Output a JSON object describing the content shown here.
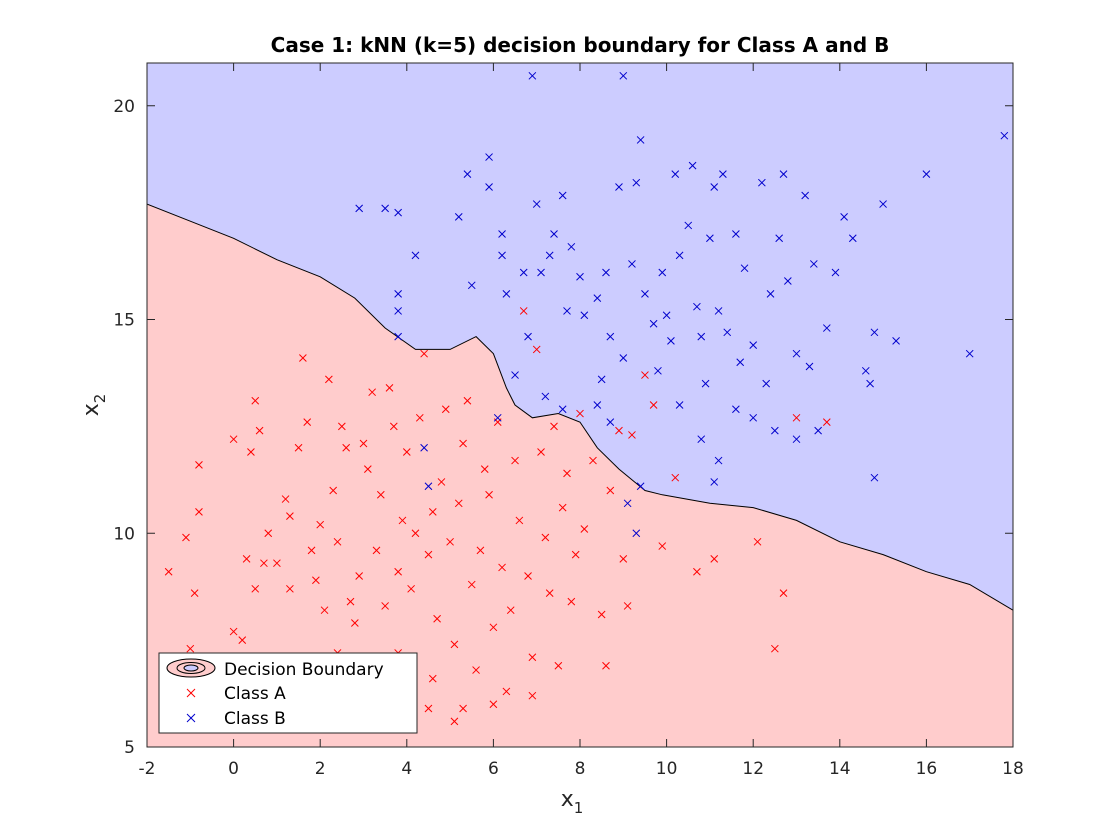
{
  "chart_data": {
    "type": "scatter",
    "title": "Case 1: kNN (k=5) decision boundary for Class A and B",
    "xlabel": {
      "base": "x",
      "sub": "1"
    },
    "ylabel": {
      "base": "x",
      "sub": "2"
    },
    "xlim": [
      -2,
      18
    ],
    "ylim": [
      5,
      21
    ],
    "xticks": [
      -2,
      0,
      2,
      4,
      6,
      8,
      10,
      12,
      14,
      16,
      18
    ],
    "yticks": [
      5,
      10,
      15,
      20
    ],
    "grid": false,
    "legend": {
      "position": "bottom-left",
      "entries": [
        "Decision Boundary",
        "Class A",
        "Class B"
      ]
    },
    "colors": {
      "class_a_region": "#ffcccc",
      "class_b_region": "#ccccff",
      "class_a_marker": "#ff0000",
      "class_b_marker": "#0000cc",
      "boundary": "#000000"
    },
    "decision_boundary": [
      [
        -2,
        17.7
      ],
      [
        -1,
        17.3
      ],
      [
        0,
        16.9
      ],
      [
        1,
        16.4
      ],
      [
        2,
        16.0
      ],
      [
        2.8,
        15.5
      ],
      [
        3.5,
        14.8
      ],
      [
        4.2,
        14.3
      ],
      [
        5.0,
        14.3
      ],
      [
        5.6,
        14.6
      ],
      [
        6.0,
        14.2
      ],
      [
        6.3,
        13.4
      ],
      [
        6.5,
        13.0
      ],
      [
        6.9,
        12.7
      ],
      [
        7.5,
        12.8
      ],
      [
        8.0,
        12.6
      ],
      [
        8.4,
        12.0
      ],
      [
        8.9,
        11.5
      ],
      [
        9.5,
        11.0
      ],
      [
        9.9,
        10.9
      ],
      [
        11.0,
        10.7
      ],
      [
        12.0,
        10.6
      ],
      [
        13.0,
        10.3
      ],
      [
        14.0,
        9.8
      ],
      [
        15.0,
        9.5
      ],
      [
        16.0,
        9.1
      ],
      [
        17.0,
        8.8
      ],
      [
        18,
        8.2
      ]
    ],
    "series": [
      {
        "name": "Class A",
        "points": [
          [
            -1.5,
            9.1
          ],
          [
            -1.1,
            9.9
          ],
          [
            -0.8,
            11.6
          ],
          [
            -0.8,
            10.5
          ],
          [
            -0.9,
            8.6
          ],
          [
            -1.0,
            7.3
          ],
          [
            0.0,
            12.2
          ],
          [
            0.3,
            9.4
          ],
          [
            0.4,
            11.9
          ],
          [
            0.5,
            13.1
          ],
          [
            0.6,
            12.4
          ],
          [
            0.5,
            8.7
          ],
          [
            0.2,
            7.5
          ],
          [
            0.0,
            7.7
          ],
          [
            0.8,
            10.0
          ],
          [
            1.0,
            9.3
          ],
          [
            1.2,
            10.8
          ],
          [
            1.3,
            10.4
          ],
          [
            1.5,
            12.0
          ],
          [
            1.6,
            14.1
          ],
          [
            1.7,
            12.6
          ],
          [
            1.8,
            9.6
          ],
          [
            1.9,
            8.9
          ],
          [
            2.0,
            10.2
          ],
          [
            2.1,
            8.2
          ],
          [
            2.2,
            13.6
          ],
          [
            2.3,
            11.0
          ],
          [
            2.4,
            9.8
          ],
          [
            2.5,
            12.5
          ],
          [
            2.6,
            12.0
          ],
          [
            2.7,
            8.4
          ],
          [
            2.8,
            7.9
          ],
          [
            2.9,
            9.0
          ],
          [
            3.0,
            12.1
          ],
          [
            3.1,
            11.5
          ],
          [
            3.2,
            13.3
          ],
          [
            3.3,
            9.6
          ],
          [
            3.4,
            10.9
          ],
          [
            3.5,
            8.3
          ],
          [
            3.6,
            13.4
          ],
          [
            3.7,
            12.5
          ],
          [
            3.8,
            9.1
          ],
          [
            3.9,
            10.3
          ],
          [
            4.0,
            11.9
          ],
          [
            4.1,
            8.7
          ],
          [
            4.2,
            10.0
          ],
          [
            4.3,
            12.7
          ],
          [
            4.4,
            14.2
          ],
          [
            4.5,
            9.5
          ],
          [
            4.6,
            10.5
          ],
          [
            4.7,
            8.0
          ],
          [
            4.8,
            11.2
          ],
          [
            4.9,
            12.9
          ],
          [
            5.0,
            9.8
          ],
          [
            5.1,
            7.4
          ],
          [
            5.2,
            10.7
          ],
          [
            5.3,
            12.1
          ],
          [
            5.4,
            13.1
          ],
          [
            5.5,
            8.8
          ],
          [
            5.6,
            6.8
          ],
          [
            5.7,
            9.6
          ],
          [
            5.8,
            11.5
          ],
          [
            5.9,
            10.9
          ],
          [
            6.0,
            7.8
          ],
          [
            6.1,
            12.6
          ],
          [
            6.2,
            9.2
          ],
          [
            6.3,
            6.3
          ],
          [
            6.4,
            8.2
          ],
          [
            6.5,
            11.7
          ],
          [
            6.6,
            10.3
          ],
          [
            6.7,
            15.2
          ],
          [
            6.8,
            9.0
          ],
          [
            6.9,
            7.1
          ],
          [
            7.0,
            14.3
          ],
          [
            7.1,
            11.9
          ],
          [
            7.2,
            9.9
          ],
          [
            7.3,
            8.6
          ],
          [
            7.4,
            12.5
          ],
          [
            7.5,
            6.9
          ],
          [
            7.6,
            10.6
          ],
          [
            7.7,
            11.4
          ],
          [
            7.8,
            8.4
          ],
          [
            7.9,
            9.5
          ],
          [
            8.0,
            12.8
          ],
          [
            8.1,
            10.1
          ],
          [
            8.3,
            11.7
          ],
          [
            8.5,
            8.1
          ],
          [
            8.6,
            6.9
          ],
          [
            8.7,
            11.0
          ],
          [
            8.9,
            12.4
          ],
          [
            9.0,
            9.4
          ],
          [
            9.1,
            8.3
          ],
          [
            9.2,
            12.3
          ],
          [
            9.5,
            13.7
          ],
          [
            9.7,
            13.0
          ],
          [
            9.9,
            9.7
          ],
          [
            10.2,
            11.3
          ],
          [
            10.7,
            9.1
          ],
          [
            11.1,
            9.4
          ],
          [
            12.1,
            9.8
          ],
          [
            12.5,
            7.3
          ],
          [
            12.7,
            8.6
          ],
          [
            13.0,
            12.7
          ],
          [
            13.7,
            12.6
          ],
          [
            3.8,
            7.2
          ],
          [
            4.6,
            6.6
          ],
          [
            5.1,
            5.6
          ],
          [
            6.0,
            6.0
          ],
          [
            6.9,
            6.2
          ],
          [
            5.3,
            5.9
          ],
          [
            2.4,
            7.2
          ],
          [
            4.5,
            5.9
          ],
          [
            1.3,
            8.7
          ],
          [
            0.7,
            9.3
          ]
        ]
      },
      {
        "name": "Class B",
        "points": [
          [
            2.9,
            17.6
          ],
          [
            3.5,
            17.6
          ],
          [
            3.8,
            17.5
          ],
          [
            4.2,
            16.5
          ],
          [
            3.8,
            15.6
          ],
          [
            3.8,
            15.2
          ],
          [
            3.8,
            14.6
          ],
          [
            5.2,
            17.4
          ],
          [
            5.4,
            18.4
          ],
          [
            5.5,
            15.8
          ],
          [
            5.9,
            18.8
          ],
          [
            5.9,
            18.1
          ],
          [
            6.2,
            17.0
          ],
          [
            6.2,
            16.5
          ],
          [
            6.7,
            16.1
          ],
          [
            6.9,
            20.7
          ],
          [
            7.0,
            17.7
          ],
          [
            7.1,
            16.1
          ],
          [
            7.3,
            16.5
          ],
          [
            7.4,
            17.0
          ],
          [
            7.6,
            17.9
          ],
          [
            7.8,
            16.7
          ],
          [
            8.0,
            16.0
          ],
          [
            8.1,
            15.1
          ],
          [
            8.4,
            15.5
          ],
          [
            8.6,
            16.1
          ],
          [
            8.7,
            14.6
          ],
          [
            8.9,
            18.1
          ],
          [
            9.0,
            20.7
          ],
          [
            9.2,
            16.3
          ],
          [
            9.3,
            18.2
          ],
          [
            9.4,
            19.2
          ],
          [
            9.5,
            15.6
          ],
          [
            9.7,
            14.9
          ],
          [
            9.9,
            16.1
          ],
          [
            10.0,
            15.1
          ],
          [
            10.2,
            18.4
          ],
          [
            10.3,
            16.5
          ],
          [
            10.5,
            17.2
          ],
          [
            10.6,
            18.6
          ],
          [
            10.7,
            15.3
          ],
          [
            10.8,
            14.6
          ],
          [
            11.0,
            16.9
          ],
          [
            11.1,
            18.1
          ],
          [
            11.2,
            15.2
          ],
          [
            11.3,
            18.4
          ],
          [
            11.4,
            14.7
          ],
          [
            11.6,
            17.0
          ],
          [
            11.8,
            16.2
          ],
          [
            12.0,
            14.4
          ],
          [
            12.2,
            18.2
          ],
          [
            12.4,
            15.6
          ],
          [
            12.6,
            16.9
          ],
          [
            12.7,
            18.4
          ],
          [
            12.8,
            15.9
          ],
          [
            13.0,
            14.2
          ],
          [
            13.2,
            17.9
          ],
          [
            13.4,
            16.3
          ],
          [
            13.7,
            14.8
          ],
          [
            13.9,
            16.1
          ],
          [
            14.1,
            17.4
          ],
          [
            14.3,
            16.9
          ],
          [
            14.6,
            13.8
          ],
          [
            14.8,
            14.7
          ],
          [
            15.0,
            17.7
          ],
          [
            15.3,
            14.5
          ],
          [
            16.0,
            18.4
          ],
          [
            17.0,
            14.2
          ],
          [
            17.8,
            19.3
          ],
          [
            8.5,
            13.6
          ],
          [
            9.0,
            14.1
          ],
          [
            9.8,
            13.8
          ],
          [
            10.3,
            13.0
          ],
          [
            10.8,
            12.2
          ],
          [
            11.2,
            11.7
          ],
          [
            11.6,
            12.9
          ],
          [
            12.0,
            12.7
          ],
          [
            12.5,
            12.4
          ],
          [
            13.0,
            12.2
          ],
          [
            13.5,
            12.4
          ],
          [
            14.8,
            11.3
          ],
          [
            11.1,
            11.2
          ],
          [
            8.7,
            12.6
          ],
          [
            7.6,
            12.9
          ],
          [
            6.1,
            12.7
          ],
          [
            6.8,
            14.6
          ],
          [
            6.5,
            13.7
          ],
          [
            7.2,
            13.2
          ],
          [
            4.4,
            12.0
          ],
          [
            4.5,
            11.1
          ],
          [
            9.4,
            11.1
          ],
          [
            9.1,
            10.7
          ],
          [
            9.3,
            10.0
          ],
          [
            8.4,
            13.0
          ],
          [
            10.1,
            14.5
          ],
          [
            10.9,
            13.5
          ],
          [
            11.7,
            14.0
          ],
          [
            12.3,
            13.5
          ],
          [
            13.3,
            13.9
          ],
          [
            14.7,
            13.5
          ],
          [
            6.3,
            15.6
          ],
          [
            7.7,
            15.2
          ]
        ]
      }
    ]
  }
}
